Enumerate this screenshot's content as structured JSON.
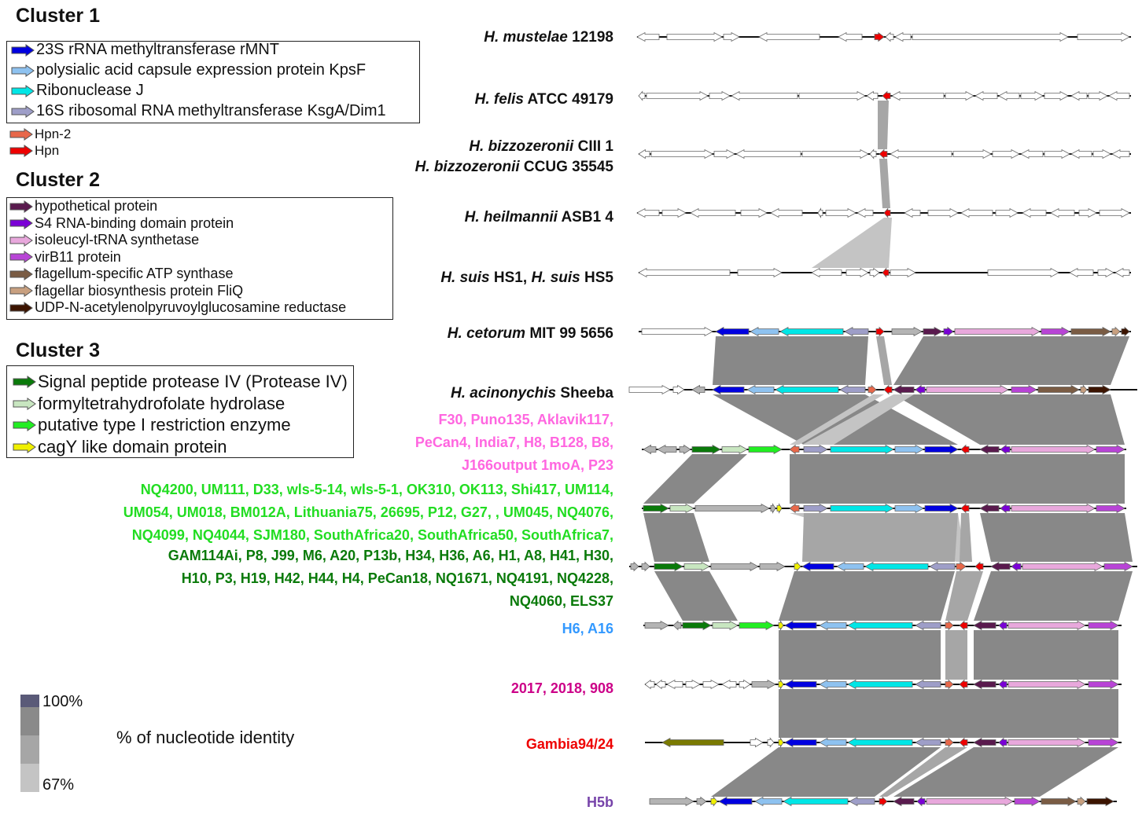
{
  "clusters": {
    "c1": "Cluster 1",
    "c2": "Cluster 2",
    "c3": "Cluster 3"
  },
  "legend1": [
    {
      "label": "23S rRNA methyltransferase rMNT",
      "color": "#0000e0"
    },
    {
      "label": "polysialic acid capsule expression protein KpsF",
      "color": "#8ec2f0"
    },
    {
      "label": "Ribonuclease J",
      "color": "#00e6e6"
    },
    {
      "label": "16S ribosomal RNA methyltransferase KsgA/Dim1",
      "color": "#9e9ec8"
    }
  ],
  "legend_hpn": [
    {
      "label": "Hpn-2",
      "color": "#e8684a"
    },
    {
      "label": "Hpn",
      "color": "#ee0000"
    }
  ],
  "legend2": [
    {
      "label": "hypothetical protein",
      "color": "#5a1a4e"
    },
    {
      "label": "S4 RNA-binding domain protein",
      "color": "#7a00d6"
    },
    {
      "label": "isoleucyl-tRNA synthetase",
      "color": "#e8a8dc"
    },
    {
      "label": "virB11 protein",
      "color": "#b844d6"
    },
    {
      "label": "flagellum-specific ATP synthase",
      "color": "#7a5c44"
    },
    {
      "label": "flagellar biosynthesis protein FliQ",
      "color": "#c8a080"
    },
    {
      "label": "UDP-N-acetylenolpyruvoylglucosamine reductase",
      "color": "#3c1400"
    }
  ],
  "legend3": [
    {
      "label": "Signal peptide protease IV (Protease IV)",
      "color": "#0a7a0a"
    },
    {
      "label": "formyltetrahydrofolate hydrolase",
      "color": "#c8e6c0"
    },
    {
      "label": "putative type I restriction enzyme",
      "color": "#22ee22"
    },
    {
      "label": "cagY like domain protein",
      "color": "#f0f000"
    }
  ],
  "species": [
    {
      "italic": "H. mustelae",
      "rest": " 12198"
    },
    {
      "italic": "H. felis",
      "rest": " ATCC 49179"
    },
    {
      "italic": "H. bizzozeronii",
      "rest": " CIII 1"
    },
    {
      "italic": "H. bizzozeronii",
      "rest": " CCUG 35545"
    },
    {
      "italic": "H. heilmannii",
      "rest": " ASB1 4"
    },
    {
      "italic": "H. suis",
      "rest": " HS1, ",
      "italic2": "H. suis",
      "rest2": " HS5"
    },
    {
      "italic": "H. cetorum",
      "rest": " MIT 99 5656"
    },
    {
      "italic": "H. acinonychis",
      "rest": " Sheeba"
    }
  ],
  "strain_groups": [
    {
      "color": "#ff66e0",
      "lines": [
        "F30, Puno135, Aklavik117,",
        "PeCan4, India7,  H8, B128, B8,",
        "J166output 1moA, P23"
      ]
    },
    {
      "color": "#22dd22",
      "lines": [
        "NQ4200, UM111, D33, wls-5-14, wls-5-1, OK310, OK113, Shi417, UM114,",
        "UM054, UM018, BM012A, Lithuania75, 26695, P12, G27, , UM045, NQ4076,",
        "NQ4099, NQ4044, SJM180, SouthAfrica20, SouthAfrica50, SouthAfrica7,"
      ]
    },
    {
      "color": "#0a7a0a",
      "lines": [
        "GAM114Ai, P8, J99, M6, A20, P13b, H34, H36, A6, H1, A8, H41, H30,",
        "H10, P3, H19, H42, H44, H4, PeCan18, NQ1671, NQ4191, NQ4228,",
        "NQ4060, ELS37"
      ]
    },
    {
      "color": "#3399ff",
      "lines": [
        "H6, A16"
      ]
    },
    {
      "color": "#cc0088",
      "lines": [
        "2017, 2018, 908"
      ]
    },
    {
      "color": "#ee0000",
      "lines": [
        "Gambia94/24"
      ]
    },
    {
      "color": "#7744aa",
      "lines": [
        "H5b"
      ]
    }
  ],
  "identity_scale": {
    "title": "% of nucleotide identity",
    "max_label": "100%",
    "min_label": "67%",
    "colors": [
      "#5a5a78",
      "#8a8a8a",
      "#a6a6a6",
      "#c4c4c4"
    ]
  }
}
